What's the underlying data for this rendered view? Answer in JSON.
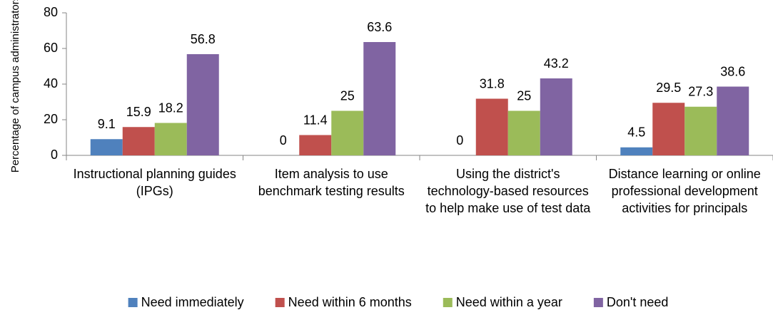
{
  "chart_data": {
    "type": "bar",
    "y_label": "Percentage of campus administrators",
    "categories": [
      "Instructional planning guides (IPGs)",
      "Item analysis to use benchmark testing results",
      "Using the district's technology-based resources to help make use of test data",
      "Distance learning or online professional development activities for principals"
    ],
    "series": [
      {
        "name": "Need immediately",
        "color": "#4f81bd",
        "values": [
          9.1,
          0,
          0,
          4.5
        ]
      },
      {
        "name": "Need within 6 months",
        "color": "#c0504d",
        "values": [
          15.9,
          11.4,
          31.8,
          29.5
        ]
      },
      {
        "name": "Need within a year",
        "color": "#9bbb59",
        "values": [
          18.2,
          25,
          25,
          27.3
        ]
      },
      {
        "name": "Don't need",
        "color": "#8064a2",
        "values": [
          56.8,
          63.6,
          43.2,
          38.6
        ]
      }
    ],
    "ylim": [
      0,
      80
    ],
    "yticks": [
      0,
      20,
      40,
      60,
      80
    ],
    "legend": "bottom"
  }
}
